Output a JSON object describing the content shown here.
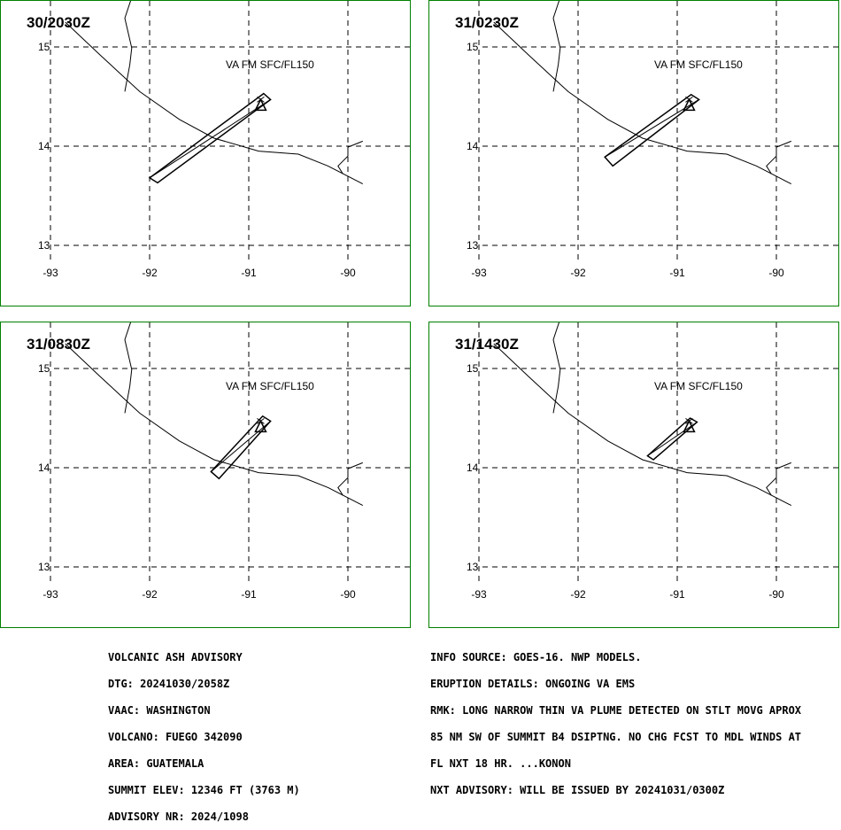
{
  "valid_time_label_text": "VA FM SFC/FL150",
  "panels": [
    {
      "time": "30/2030Z",
      "plume": [
        [
          -92.0,
          13.68
        ],
        [
          -91.92,
          13.63
        ],
        [
          -90.78,
          14.47
        ],
        [
          -90.85,
          14.53
        ]
      ]
    },
    {
      "time": "31/0230Z",
      "plume": [
        [
          -91.73,
          13.89
        ],
        [
          -91.65,
          13.8
        ],
        [
          -90.78,
          14.47
        ],
        [
          -90.86,
          14.52
        ]
      ]
    },
    {
      "time": "31/0830Z",
      "plume": [
        [
          -91.38,
          13.96
        ],
        [
          -91.3,
          13.89
        ],
        [
          -90.78,
          14.47
        ],
        [
          -90.86,
          14.52
        ]
      ]
    },
    {
      "time": "31/1430Z",
      "plume": [
        [
          -91.3,
          14.12
        ],
        [
          -91.24,
          14.08
        ],
        [
          -90.8,
          14.46
        ],
        [
          -90.87,
          14.5
        ]
      ]
    }
  ],
  "volcano": {
    "lon": -90.88,
    "lat": 14.47
  },
  "axes": {
    "x_ticks": [
      -93,
      -92,
      -91,
      -90
    ],
    "y_ticks": [
      15,
      14,
      13
    ]
  },
  "coastline": [
    [
      -92.85,
      15.25
    ],
    [
      -92.5,
      14.92
    ],
    [
      -92.1,
      14.55
    ],
    [
      -91.7,
      14.27
    ],
    [
      -91.35,
      14.08
    ],
    [
      -90.9,
      13.95
    ],
    [
      -90.5,
      13.92
    ],
    [
      -90.2,
      13.8
    ],
    [
      -89.85,
      13.62
    ]
  ],
  "border_mexico": [
    [
      -92.2,
      15.99
    ],
    [
      -92.3,
      15.79
    ],
    [
      -92.15,
      15.59
    ],
    [
      -92.25,
      15.29
    ],
    [
      -92.18,
      14.99
    ],
    [
      -92.2,
      14.82
    ],
    [
      -92.25,
      14.55
    ]
  ],
  "border_salvador": [
    [
      -89.85,
      14.05
    ],
    [
      -90.0,
      13.99
    ],
    [
      -90.0,
      13.9
    ],
    [
      -90.1,
      13.8
    ],
    [
      -90.05,
      13.72
    ]
  ],
  "advisory_left": [
    "VOLCANIC ASH ADVISORY",
    "DTG: 20241030/2058Z",
    "VAAC: WASHINGTON",
    "VOLCANO: FUEGO 342090",
    "AREA: GUATEMALA",
    "SUMMIT ELEV: 12346 FT (3763 M)",
    "ADVISORY NR: 2024/1098"
  ],
  "advisory_right": [
    "INFO SOURCE: GOES-16. NWP MODELS.",
    "ERUPTION DETAILS: ONGOING VA EMS",
    "RMK: LONG NARROW THIN VA PLUME DETECTED ON STLT MOVG APROX",
    "85 NM SW OF SUMMIT B4 DSIPTNG. NO CHG FCST TO MDL WINDS AT",
    "FL NXT 18 HR. ...KONON",
    "NXT ADVISORY: WILL BE ISSUED BY 20241031/0300Z"
  ],
  "colors": {
    "frame": "#008000",
    "lines": "#000000"
  }
}
